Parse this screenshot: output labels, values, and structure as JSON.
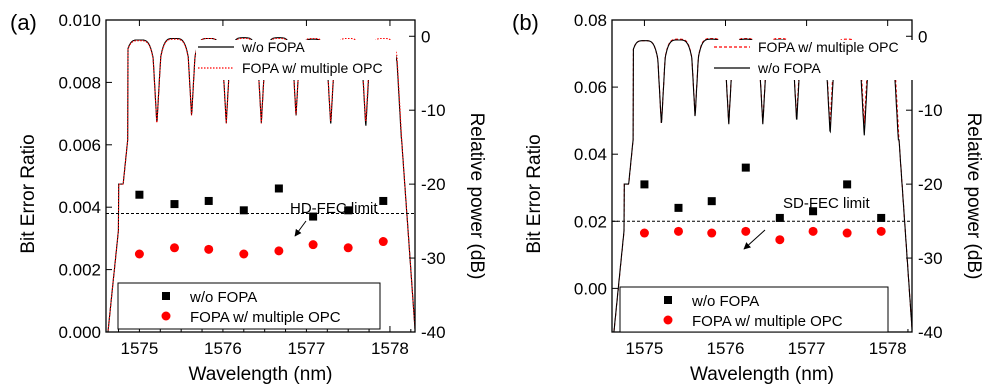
{
  "chart_data": [
    {
      "panel_label": "(a)",
      "type": "scatter",
      "xlabel": "Wavelength (nm)",
      "ylabel": "Bit Error Ratio",
      "y2label": "Relative power (dB)",
      "xlim": [
        1574.6,
        1578.3
      ],
      "ylim": [
        0.0,
        0.01
      ],
      "y2lim": [
        -40,
        2.2
      ],
      "x_ticks": [
        "1575",
        "1576",
        "1577",
        "1578"
      ],
      "y_ticks": [
        "0.000",
        "0.002",
        "0.004",
        "0.006",
        "0.008",
        "0.010"
      ],
      "y2_ticks": [
        "0",
        "-10",
        "-20",
        "-30",
        "-40"
      ],
      "threshold": {
        "label": "HD-FEC limit",
        "value": 0.0038
      },
      "scatter_series": [
        {
          "name": "w/o FOPA",
          "color": "#000000",
          "marker": "square",
          "x": [
            1575.0,
            1575.42,
            1575.83,
            1576.25,
            1576.67,
            1577.08,
            1577.5,
            1577.92
          ],
          "y": [
            0.0044,
            0.0041,
            0.0042,
            0.0039,
            0.0046,
            0.0037,
            0.0039,
            0.0042
          ]
        },
        {
          "name": "FOPA w/ multiple OPC",
          "color": "#ff0000",
          "marker": "circle",
          "x": [
            1575.0,
            1575.42,
            1575.83,
            1576.25,
            1576.67,
            1577.08,
            1577.5,
            1577.92
          ],
          "y": [
            0.0025,
            0.0027,
            0.00265,
            0.0025,
            0.0026,
            0.0028,
            0.0027,
            0.0029
          ]
        }
      ],
      "spectrum_series": [
        {
          "name": "w/o FOPA",
          "color": "#000000",
          "style": "solid",
          "peaks_db": [
            -0.5,
            -0.3,
            -0.3,
            -0.2,
            -0.2,
            -0.4,
            -0.7,
            -1.0
          ]
        },
        {
          "name": "FOPA w/ multiple OPC",
          "color": "#ff0000",
          "style": "dotted",
          "peaks_db": [
            -0.6,
            -0.4,
            -0.3,
            -0.3,
            -0.3,
            -0.3,
            -0.3,
            -0.3
          ]
        }
      ],
      "top_legend_order": [
        "w/o FOPA",
        "FOPA w/ multiple OPC"
      ],
      "bottom_legend_order": [
        "w/o FOPA",
        "FOPA w/ multiple OPC"
      ]
    },
    {
      "panel_label": "(b)",
      "type": "scatter",
      "xlabel": "Wavelength (nm)",
      "ylabel": "Bit Error Ratio",
      "y2label": "Relative power (dB)",
      "xlim": [
        1574.6,
        1578.3
      ],
      "ylim": [
        -0.013,
        0.08
      ],
      "y2lim": [
        -40,
        2.2
      ],
      "x_ticks": [
        "1575",
        "1576",
        "1577",
        "1578"
      ],
      "y_ticks": [
        "0.00",
        "0.02",
        "0.04",
        "0.06",
        "0.08"
      ],
      "y2_ticks": [
        "0",
        "-10",
        "-20",
        "-30",
        "-40"
      ],
      "threshold": {
        "label": "SD-FEC limit",
        "value": 0.02
      },
      "scatter_series": [
        {
          "name": "w/o FOPA",
          "color": "#000000",
          "marker": "square",
          "x": [
            1575.0,
            1575.42,
            1575.83,
            1576.25,
            1576.67,
            1577.08,
            1577.5,
            1577.92
          ],
          "y": [
            0.031,
            0.024,
            0.026,
            0.036,
            0.021,
            0.023,
            0.031,
            0.021
          ]
        },
        {
          "name": "FOPA w/ multiple OPC",
          "color": "#ff0000",
          "marker": "circle",
          "x": [
            1575.0,
            1575.42,
            1575.83,
            1576.25,
            1576.67,
            1577.08,
            1577.5,
            1577.92
          ],
          "y": [
            0.0165,
            0.017,
            0.0165,
            0.017,
            0.0145,
            0.017,
            0.0165,
            0.017
          ]
        }
      ],
      "spectrum_series": [
        {
          "name": "FOPA w/ multiple OPC",
          "color": "#ff0000",
          "style": "dashed",
          "peaks_db": [
            -0.6,
            -0.4,
            -0.3,
            -0.3,
            -0.3,
            -1.0,
            -0.4,
            -0.7
          ]
        },
        {
          "name": "w/o FOPA",
          "color": "#000000",
          "style": "solid",
          "peaks_db": [
            -0.6,
            -0.5,
            -0.4,
            -0.4,
            -0.5,
            -1.7,
            -1.8,
            -2.3
          ]
        }
      ],
      "top_legend_order": [
        "FOPA w/ multiple OPC",
        "w/o FOPA"
      ],
      "bottom_legend_order": [
        "w/o FOPA",
        "FOPA w/ multiple OPC"
      ]
    }
  ]
}
